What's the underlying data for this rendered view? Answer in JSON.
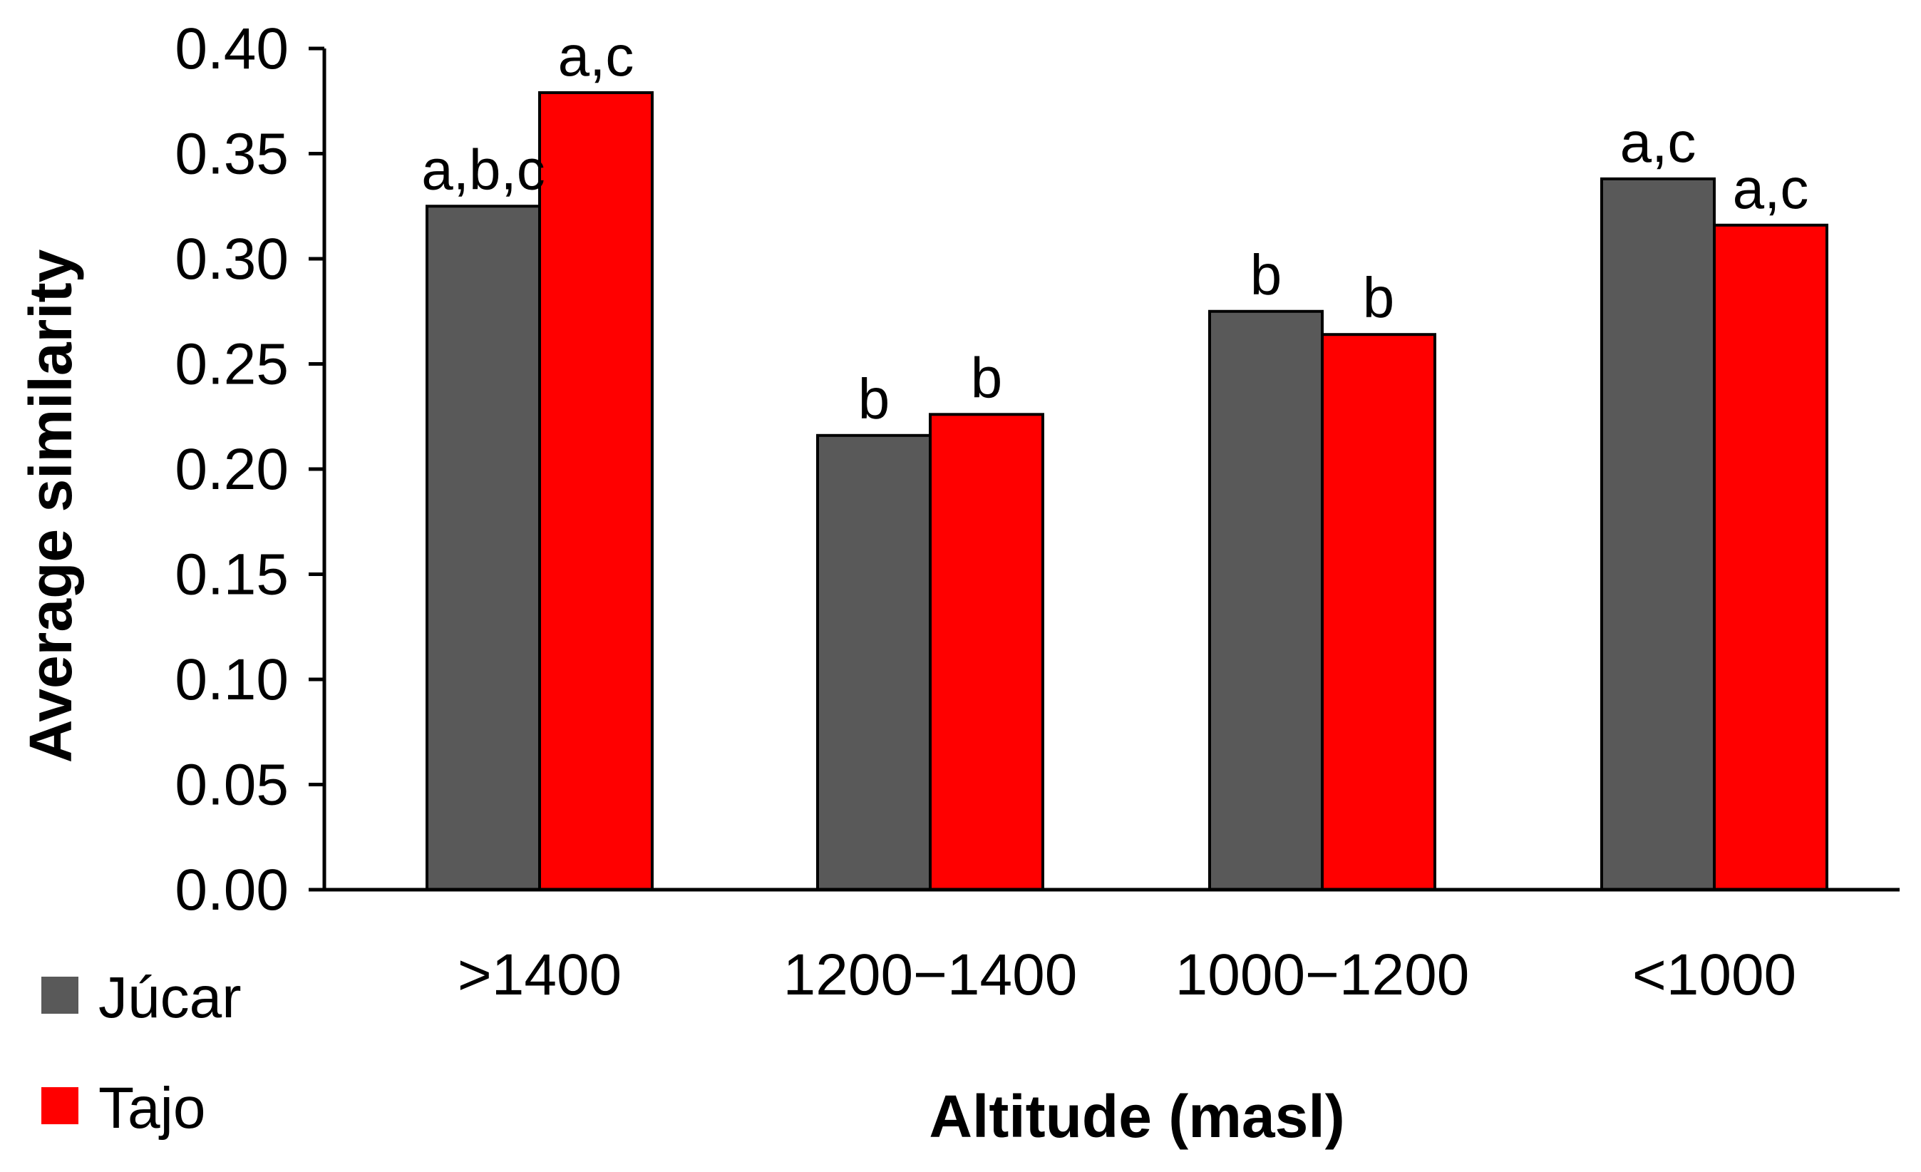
{
  "chart_data": {
    "type": "bar",
    "title": "",
    "xlabel": "Altitude (masl)",
    "ylabel": "Average similarity",
    "ylim": [
      0,
      0.4
    ],
    "yticks": [
      "0.00",
      "0.05",
      "0.10",
      "0.15",
      "0.20",
      "0.25",
      "0.30",
      "0.35",
      "0.40"
    ],
    "grid": false,
    "legend_position": "bottom-left",
    "categories": [
      ">1400",
      "1200−1400",
      "1000−1200",
      "<1000"
    ],
    "series": [
      {
        "name": "Júcar",
        "color": "#595959",
        "values": [
          0.325,
          0.216,
          0.275,
          0.338
        ],
        "labels": [
          "a,b,c",
          "b",
          "b",
          "a,c"
        ]
      },
      {
        "name": "Tajo",
        "color": "#ff0000",
        "values": [
          0.379,
          0.226,
          0.264,
          0.316
        ],
        "labels": [
          "a,c",
          "b",
          "b",
          "a,c"
        ]
      }
    ]
  }
}
